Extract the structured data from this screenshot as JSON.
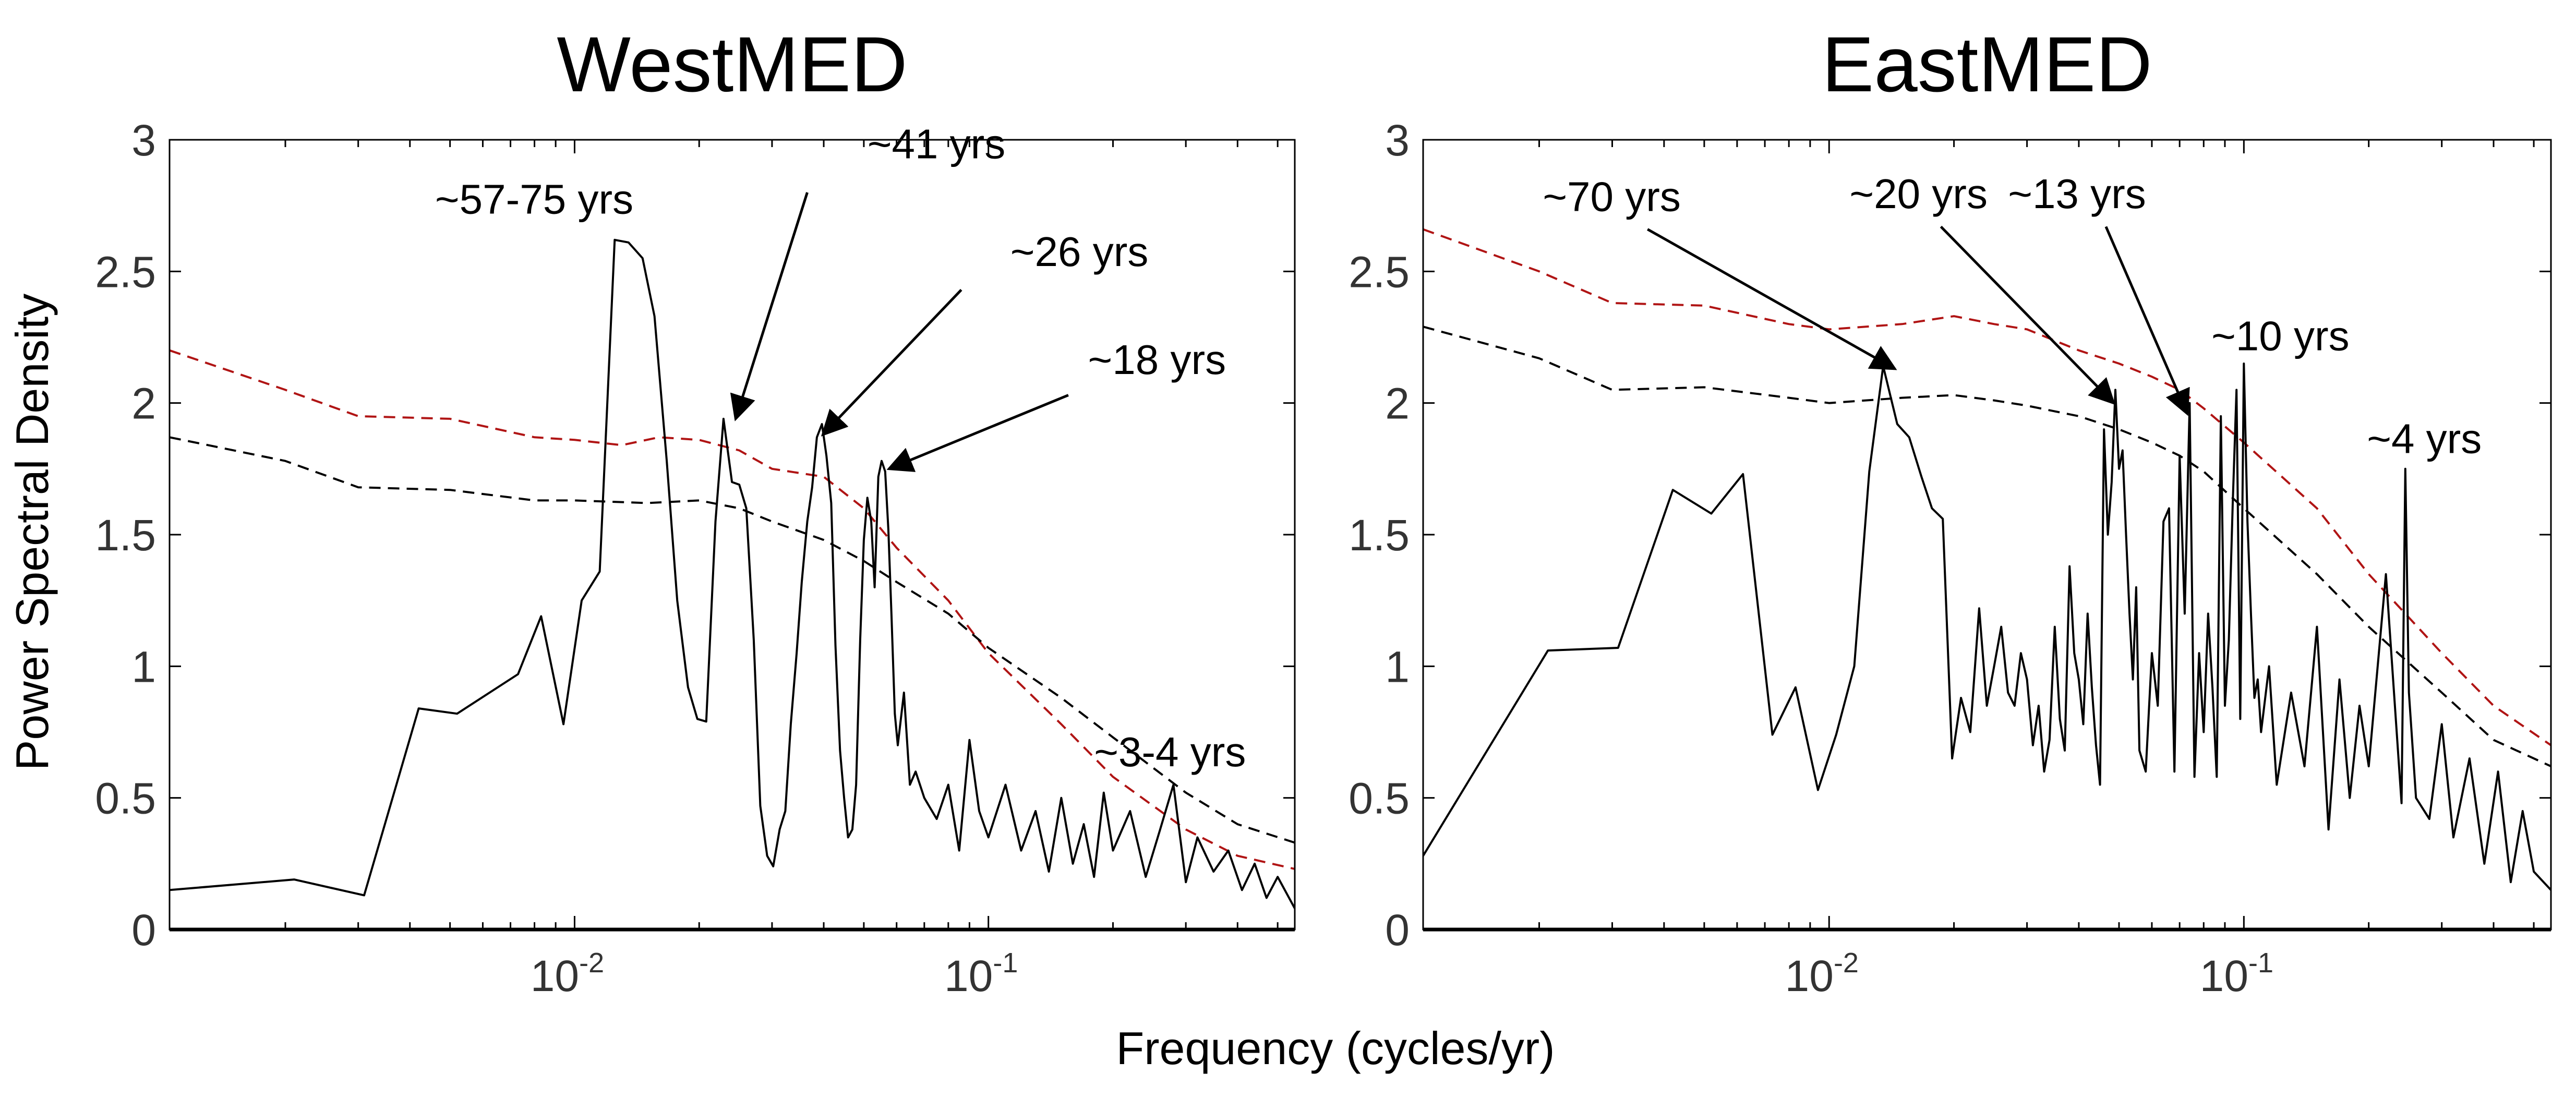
{
  "xlabel": "Frequency (cycles/yr)",
  "ylabel": "Power Spectral Density",
  "colors": {
    "spectrum": "#000000",
    "ci_black": "#000000",
    "ci_red": "#b01414"
  },
  "chart_data": [
    {
      "type": "line",
      "title": "WestMED",
      "xscale": "log",
      "xlim": [
        0.00105,
        0.55
      ],
      "ylim": [
        0,
        3
      ],
      "yticks": [
        "0",
        "0.5",
        "1",
        "1.5",
        "2",
        "2.5",
        "3"
      ],
      "xticks": [
        {
          "base": "10",
          "exp": "-2",
          "value": 0.01
        },
        {
          "base": "10",
          "exp": "-1",
          "value": 0.1
        }
      ],
      "grid": false,
      "series": [
        {
          "style": "solid-black",
          "x": [
            0.00105,
            0.0021,
            0.0031,
            0.0042,
            0.0052,
            0.0073,
            0.0083,
            0.0094,
            0.0104,
            0.0115,
            0.0125,
            0.0135,
            0.0146,
            0.0156,
            0.0167,
            0.0177,
            0.0188,
            0.0198,
            0.0208,
            0.0219,
            0.0229,
            0.024,
            0.025,
            0.026,
            0.0271,
            0.0281,
            0.0292,
            0.0302,
            0.0313,
            0.0323,
            0.0333,
            0.0344,
            0.0354,
            0.0365,
            0.0375,
            0.0385,
            0.0396,
            0.0406,
            0.0417,
            0.0427,
            0.0438,
            0.0448,
            0.0458,
            0.0469,
            0.0479,
            0.049,
            0.05,
            0.051,
            0.0521,
            0.0531,
            0.0542,
            0.0552,
            0.0563,
            0.0573,
            0.0583,
            0.0594,
            0.0604,
            0.0625,
            0.0646,
            0.0667,
            0.07,
            0.075,
            0.08,
            0.085,
            0.09,
            0.095,
            0.1,
            0.11,
            0.12,
            0.13,
            0.14,
            0.15,
            0.16,
            0.17,
            0.18,
            0.19,
            0.2,
            0.22,
            0.24,
            0.26,
            0.28,
            0.3,
            0.32,
            0.35,
            0.38,
            0.41,
            0.44,
            0.47,
            0.5,
            0.55
          ],
          "y": [
            0.15,
            0.19,
            0.13,
            0.84,
            0.82,
            0.97,
            1.19,
            0.78,
            1.25,
            1.36,
            2.62,
            2.61,
            2.55,
            2.33,
            1.78,
            1.25,
            0.92,
            0.8,
            0.79,
            1.55,
            1.94,
            1.7,
            1.69,
            1.6,
            1.1,
            0.47,
            0.28,
            0.24,
            0.38,
            0.45,
            0.78,
            1.05,
            1.32,
            1.55,
            1.68,
            1.87,
            1.92,
            1.8,
            1.62,
            1.08,
            0.68,
            0.5,
            0.35,
            0.38,
            0.55,
            1.1,
            1.48,
            1.64,
            1.55,
            1.3,
            1.72,
            1.78,
            1.74,
            1.52,
            1.2,
            0.82,
            0.7,
            0.9,
            0.55,
            0.6,
            0.5,
            0.42,
            0.55,
            0.3,
            0.72,
            0.45,
            0.35,
            0.55,
            0.3,
            0.45,
            0.22,
            0.5,
            0.25,
            0.4,
            0.2,
            0.52,
            0.3,
            0.45,
            0.2,
            0.38,
            0.55,
            0.18,
            0.35,
            0.22,
            0.3,
            0.15,
            0.25,
            0.12,
            0.2,
            0.08
          ]
        },
        {
          "style": "dashed-black",
          "x": [
            0.00105,
            0.002,
            0.003,
            0.005,
            0.008,
            0.01,
            0.015,
            0.02,
            0.025,
            0.03,
            0.04,
            0.05,
            0.06,
            0.08,
            0.1,
            0.15,
            0.2,
            0.3,
            0.4,
            0.55
          ],
          "y": [
            1.87,
            1.78,
            1.68,
            1.67,
            1.63,
            1.63,
            1.62,
            1.63,
            1.6,
            1.55,
            1.48,
            1.4,
            1.32,
            1.2,
            1.07,
            0.88,
            0.73,
            0.52,
            0.4,
            0.33
          ]
        },
        {
          "style": "dashed-red",
          "x": [
            0.00105,
            0.002,
            0.003,
            0.005,
            0.008,
            0.01,
            0.013,
            0.016,
            0.02,
            0.025,
            0.03,
            0.04,
            0.05,
            0.06,
            0.08,
            0.1,
            0.15,
            0.2,
            0.3,
            0.4,
            0.55
          ],
          "y": [
            2.2,
            2.05,
            1.95,
            1.94,
            1.87,
            1.86,
            1.84,
            1.87,
            1.86,
            1.82,
            1.75,
            1.72,
            1.6,
            1.45,
            1.25,
            1.05,
            0.78,
            0.58,
            0.38,
            0.28,
            0.23
          ]
        }
      ],
      "annotations": [
        {
          "text": "~57-75 yrs",
          "tx": 0.0046,
          "ty": 2.72
        },
        {
          "text": "~41 yrs",
          "tx": 0.051,
          "ty": 2.93,
          "ax": 0.0365,
          "ay": 2.8,
          "hx": 0.0245,
          "hy": 1.94
        },
        {
          "text": "~26 yrs",
          "tx": 0.113,
          "ty": 2.52,
          "ax": 0.086,
          "ay": 2.43,
          "hx": 0.0398,
          "hy": 1.88
        },
        {
          "text": "~18 yrs",
          "tx": 0.174,
          "ty": 2.11,
          "ax": 0.156,
          "ay": 2.03,
          "hx": 0.0575,
          "hy": 1.75
        },
        {
          "text": "~3-4 yrs",
          "tx": 0.18,
          "ty": 0.62
        }
      ]
    },
    {
      "type": "line",
      "title": "EastMED",
      "xscale": "log",
      "xlim": [
        0.00105,
        0.55
      ],
      "ylim": [
        0,
        3
      ],
      "yticks": [
        "0",
        "0.5",
        "1",
        "1.5",
        "2",
        "2.5",
        "3"
      ],
      "xticks": [
        {
          "base": "10",
          "exp": "-2",
          "value": 0.01
        },
        {
          "base": "10",
          "exp": "-1",
          "value": 0.1
        }
      ],
      "grid": false,
      "series": [
        {
          "style": "solid-black",
          "x": [
            0.00105,
            0.0021,
            0.0031,
            0.0042,
            0.0052,
            0.0062,
            0.0073,
            0.0083,
            0.0094,
            0.0104,
            0.0115,
            0.0125,
            0.0135,
            0.0146,
            0.0156,
            0.0167,
            0.0177,
            0.0188,
            0.0198,
            0.0208,
            0.0219,
            0.023,
            0.024,
            0.025,
            0.026,
            0.027,
            0.028,
            0.029,
            0.03,
            0.031,
            0.032,
            0.033,
            0.034,
            0.035,
            0.036,
            0.037,
            0.038,
            0.039,
            0.04,
            0.041,
            0.042,
            0.043,
            0.044,
            0.045,
            0.046,
            0.047,
            0.048,
            0.049,
            0.05,
            0.051,
            0.052,
            0.053,
            0.054,
            0.055,
            0.056,
            0.058,
            0.06,
            0.062,
            0.064,
            0.066,
            0.068,
            0.07,
            0.072,
            0.074,
            0.076,
            0.078,
            0.08,
            0.082,
            0.084,
            0.086,
            0.088,
            0.09,
            0.092,
            0.094,
            0.096,
            0.098,
            0.1,
            0.102,
            0.104,
            0.106,
            0.108,
            0.11,
            0.115,
            0.12,
            0.13,
            0.14,
            0.15,
            0.16,
            0.17,
            0.18,
            0.19,
            0.2,
            0.22,
            0.24,
            0.245,
            0.25,
            0.26,
            0.28,
            0.3,
            0.32,
            0.35,
            0.38,
            0.41,
            0.44,
            0.47,
            0.5,
            0.55
          ],
          "y": [
            0.28,
            1.06,
            1.07,
            1.67,
            1.58,
            1.73,
            0.74,
            0.92,
            0.53,
            0.74,
            1.0,
            1.74,
            2.14,
            1.92,
            1.87,
            1.72,
            1.6,
            1.56,
            0.65,
            0.88,
            0.75,
            1.22,
            0.85,
            1.0,
            1.15,
            0.9,
            0.85,
            1.05,
            0.95,
            0.7,
            0.85,
            0.6,
            0.72,
            1.15,
            0.8,
            0.68,
            1.38,
            1.05,
            0.95,
            0.78,
            1.2,
            0.92,
            0.7,
            0.55,
            1.9,
            1.5,
            1.7,
            2.05,
            1.75,
            1.82,
            1.5,
            1.2,
            0.95,
            1.3,
            0.68,
            0.6,
            1.05,
            0.85,
            1.55,
            1.6,
            0.6,
            1.8,
            1.2,
            2.0,
            0.58,
            1.05,
            0.75,
            1.2,
            0.92,
            0.58,
            1.95,
            0.85,
            1.1,
            1.62,
            2.05,
            0.8,
            2.15,
            1.55,
            1.2,
            0.88,
            0.95,
            0.75,
            1.0,
            0.55,
            0.9,
            0.62,
            1.15,
            0.38,
            0.95,
            0.5,
            0.85,
            0.62,
            1.35,
            0.48,
            1.75,
            0.9,
            0.5,
            0.42,
            0.78,
            0.35,
            0.65,
            0.25,
            0.6,
            0.18,
            0.45,
            0.22,
            0.15
          ]
        },
        {
          "style": "dashed-black",
          "x": [
            0.00105,
            0.002,
            0.003,
            0.005,
            0.008,
            0.01,
            0.015,
            0.02,
            0.025,
            0.03,
            0.04,
            0.05,
            0.06,
            0.07,
            0.08,
            0.1,
            0.15,
            0.2,
            0.3,
            0.4,
            0.55
          ],
          "y": [
            2.29,
            2.17,
            2.05,
            2.06,
            2.02,
            2.0,
            2.02,
            2.03,
            2.01,
            1.99,
            1.95,
            1.9,
            1.85,
            1.8,
            1.74,
            1.6,
            1.35,
            1.15,
            0.9,
            0.72,
            0.62
          ]
        },
        {
          "style": "dashed-red",
          "x": [
            0.00105,
            0.002,
            0.003,
            0.005,
            0.008,
            0.01,
            0.015,
            0.02,
            0.025,
            0.03,
            0.04,
            0.05,
            0.06,
            0.07,
            0.08,
            0.1,
            0.15,
            0.2,
            0.3,
            0.4,
            0.55
          ],
          "y": [
            2.66,
            2.5,
            2.38,
            2.37,
            2.3,
            2.28,
            2.3,
            2.33,
            2.3,
            2.28,
            2.2,
            2.15,
            2.1,
            2.05,
            1.98,
            1.85,
            1.6,
            1.35,
            1.05,
            0.85,
            0.7
          ]
        }
      ],
      "annotations": [
        {
          "text": "~70 yrs",
          "tx": 0.00204,
          "ty": 2.73,
          "ax": 0.00365,
          "ay": 2.66,
          "hx": 0.0144,
          "hy": 2.13
        },
        {
          "text": "~20 yrs",
          "tx": 0.0112,
          "ty": 2.74,
          "ax": 0.0186,
          "ay": 2.67,
          "hx": 0.0485,
          "hy": 2.0
        },
        {
          "text": "~13 yrs",
          "tx": 0.027,
          "ty": 2.74,
          "ax": 0.0465,
          "ay": 2.67,
          "hx": 0.073,
          "hy": 1.96
        },
        {
          "text": "~10 yrs",
          "tx": 0.0835,
          "ty": 2.2
        },
        {
          "text": "~4 yrs",
          "tx": 0.198,
          "ty": 1.81
        }
      ]
    }
  ]
}
